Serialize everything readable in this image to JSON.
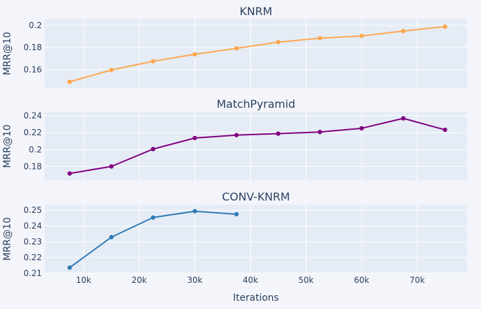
{
  "chart_data": {
    "type": "line",
    "xlabel": "Iterations",
    "x_ticks": [
      10000,
      20000,
      30000,
      40000,
      50000,
      60000,
      70000
    ],
    "x_tick_labels": [
      "10k",
      "20k",
      "30k",
      "40k",
      "50k",
      "60k",
      "70k"
    ],
    "xlim": [
      3000,
      79000
    ],
    "subplots": [
      {
        "title": "KNRM",
        "ylabel": "MRR@10",
        "color": "#fca74f",
        "ylim": [
          0.1435,
          0.2055
        ],
        "y_ticks": [
          0.16,
          0.18,
          0.2
        ],
        "y_tick_labels": [
          "0.16",
          "0.18",
          "0.2"
        ],
        "x": [
          7500,
          15000,
          22500,
          30000,
          37500,
          45000,
          52500,
          60000,
          67500,
          75000
        ],
        "values": [
          0.149,
          0.1597,
          0.1675,
          0.1738,
          0.1792,
          0.1848,
          0.1884,
          0.1904,
          0.1948,
          0.1988
        ]
      },
      {
        "title": "MatchPyramid",
        "ylabel": "MRR@10",
        "color": "#800080",
        "ylim": [
          0.1635,
          0.2445
        ],
        "y_ticks": [
          0.18,
          0.2,
          0.22,
          0.24
        ],
        "y_tick_labels": [
          "0.18",
          "0.2",
          "0.22",
          "0.24"
        ],
        "x": [
          7500,
          15000,
          22500,
          30000,
          37500,
          45000,
          52500,
          60000,
          67500,
          75000
        ],
        "values": [
          0.1719,
          0.1802,
          0.2007,
          0.2137,
          0.2172,
          0.2189,
          0.2208,
          0.2252,
          0.2369,
          0.2234
        ]
      },
      {
        "title": "CONV-KNRM",
        "ylabel": "MRR@10",
        "color": "#2e7ab6",
        "ylim": [
          0.2099,
          0.2536
        ],
        "y_ticks": [
          0.21,
          0.22,
          0.23,
          0.24,
          0.25
        ],
        "y_tick_labels": [
          "0.21",
          "0.22",
          "0.23",
          "0.24",
          "0.25"
        ],
        "x": [
          7500,
          15000,
          22500,
          30000,
          37500
        ],
        "values": [
          0.2135,
          0.2329,
          0.2454,
          0.2494,
          0.2475
        ]
      }
    ]
  }
}
